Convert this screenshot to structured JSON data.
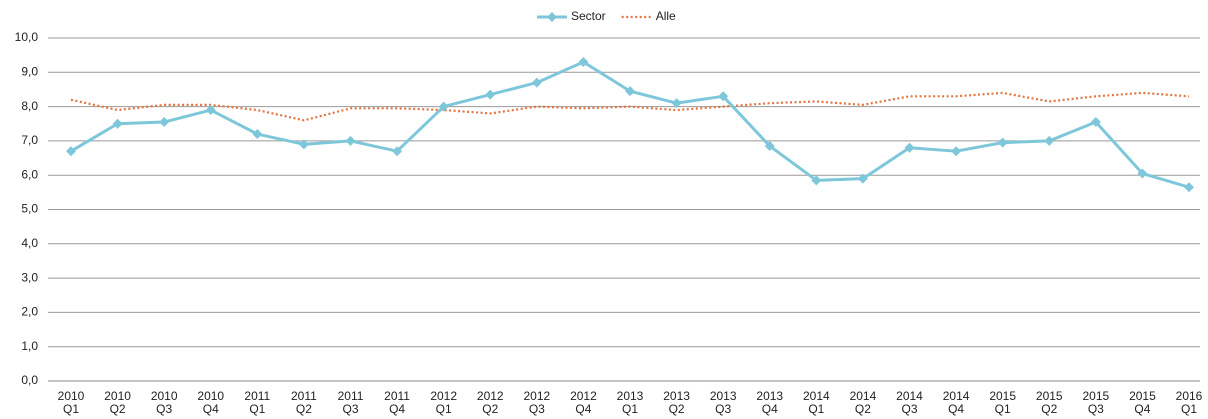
{
  "chart_data": {
    "type": "line",
    "categories": [
      [
        "2010",
        "Q1"
      ],
      [
        "2010",
        "Q2"
      ],
      [
        "2010",
        "Q3"
      ],
      [
        "2010",
        "Q4"
      ],
      [
        "2011",
        "Q1"
      ],
      [
        "2011",
        "Q2"
      ],
      [
        "2011",
        "Q3"
      ],
      [
        "2011",
        "Q4"
      ],
      [
        "2012",
        "Q1"
      ],
      [
        "2012",
        "Q2"
      ],
      [
        "2012",
        "Q3"
      ],
      [
        "2012",
        "Q4"
      ],
      [
        "2013",
        "Q1"
      ],
      [
        "2013",
        "Q2"
      ],
      [
        "2013",
        "Q3"
      ],
      [
        "2013",
        "Q4"
      ],
      [
        "2014",
        "Q1"
      ],
      [
        "2014",
        "Q2"
      ],
      [
        "2014",
        "Q3"
      ],
      [
        "2014",
        "Q4"
      ],
      [
        "2015",
        "Q1"
      ],
      [
        "2015",
        "Q2"
      ],
      [
        "2015",
        "Q3"
      ],
      [
        "2015",
        "Q4"
      ],
      [
        "2016",
        "Q1"
      ]
    ],
    "series": [
      {
        "name": "Sector",
        "color": "#7ec7db",
        "style": "solid",
        "marker": "diamond",
        "values": [
          6.7,
          7.5,
          7.55,
          7.9,
          7.2,
          6.9,
          7.0,
          6.7,
          8.0,
          8.35,
          8.7,
          9.3,
          8.45,
          8.1,
          8.3,
          6.85,
          5.85,
          5.9,
          6.8,
          6.7,
          6.95,
          7.0,
          7.55,
          6.05,
          5.65
        ]
      },
      {
        "name": "Alle",
        "color": "#e2743f",
        "style": "dotted",
        "values": [
          8.2,
          7.9,
          8.05,
          8.05,
          7.9,
          7.6,
          7.95,
          7.95,
          7.9,
          7.8,
          8.0,
          7.95,
          8.0,
          7.9,
          8.0,
          8.1,
          8.15,
          8.05,
          8.3,
          8.3,
          8.4,
          8.15,
          8.3,
          8.4,
          8.3
        ]
      }
    ],
    "ylim": [
      0,
      10
    ],
    "yticks": [
      {
        "value": 0,
        "label": "0,0"
      },
      {
        "value": 1,
        "label": "1,0"
      },
      {
        "value": 2,
        "label": "2,0"
      },
      {
        "value": 3,
        "label": "3,0"
      },
      {
        "value": 4,
        "label": "4,0"
      },
      {
        "value": 5,
        "label": "5,0"
      },
      {
        "value": 6,
        "label": "6,0"
      },
      {
        "value": 7,
        "label": "7,0"
      },
      {
        "value": 8,
        "label": "8,0"
      },
      {
        "value": 9,
        "label": "9,0"
      },
      {
        "value": 10,
        "label": "10,0"
      }
    ],
    "grid": true,
    "legend": "top"
  }
}
